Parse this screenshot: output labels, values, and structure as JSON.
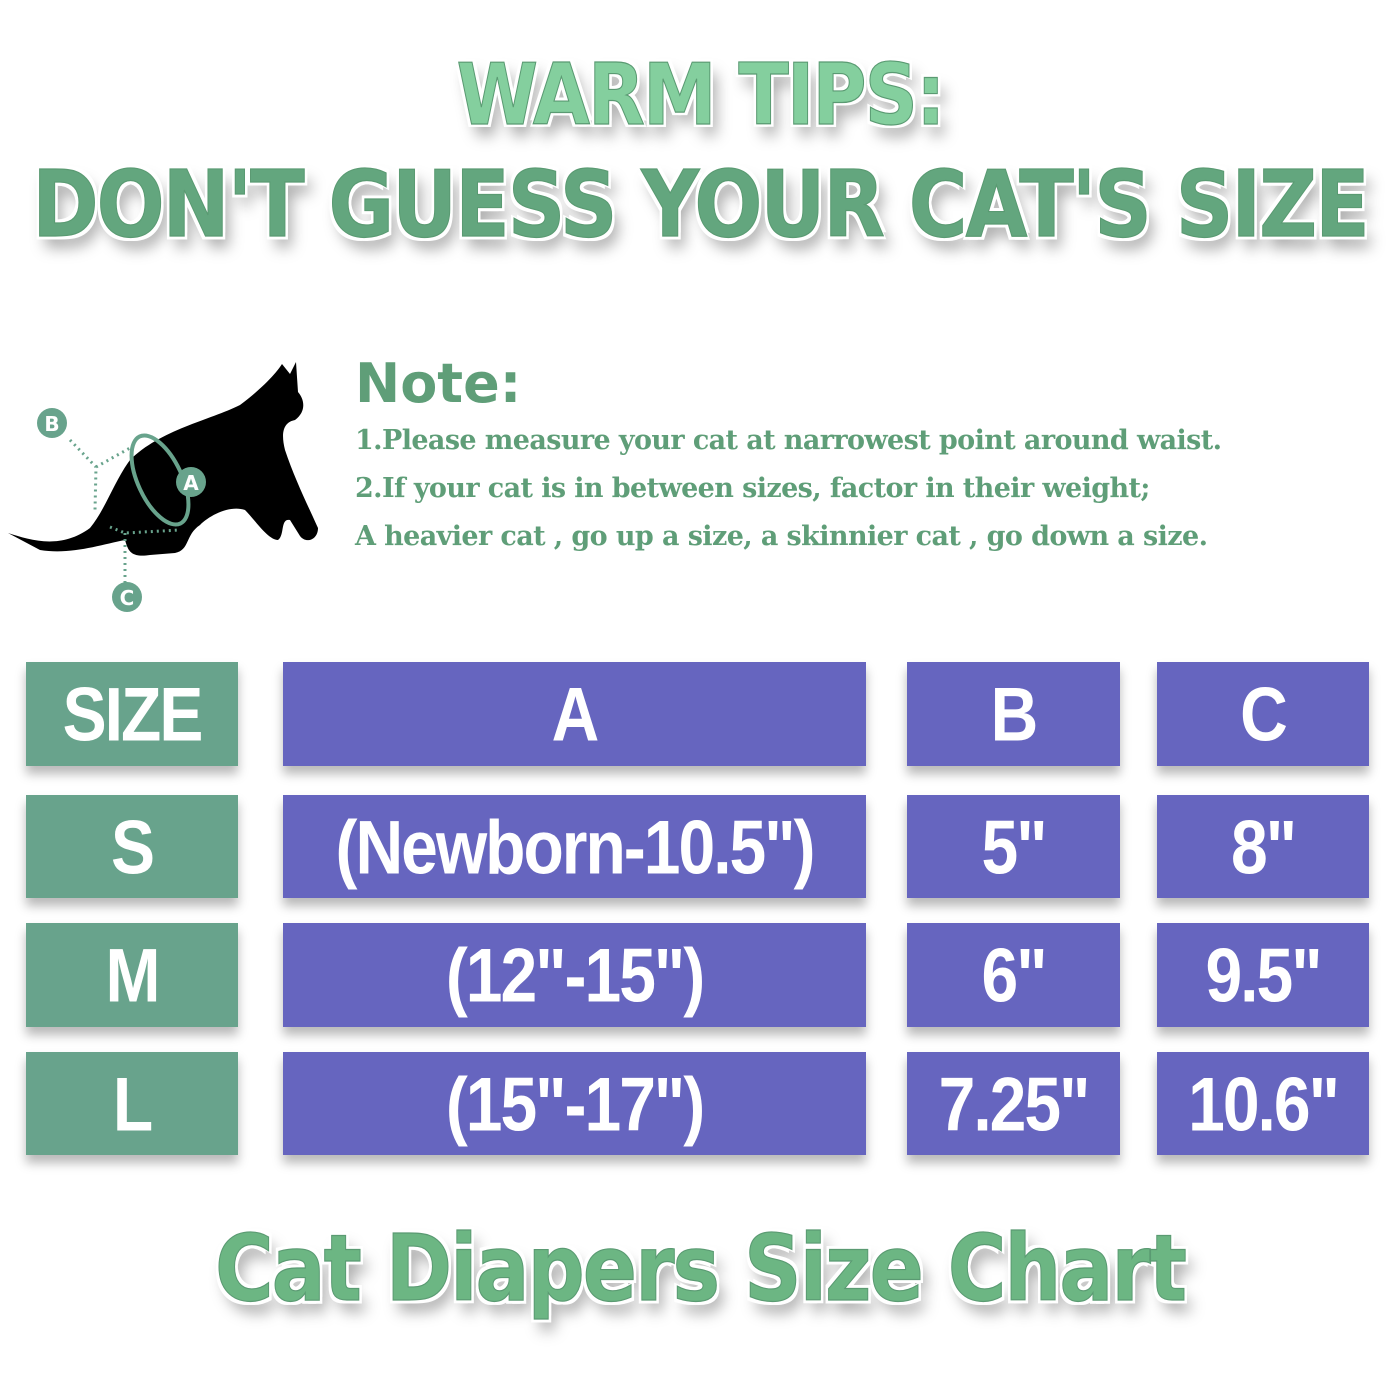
{
  "header": {
    "line1": "WARM TIPS:",
    "line2": "DON'T GUESS YOUR CAT'S SIZE"
  },
  "diagram": {
    "labels": [
      "A",
      "B",
      "C"
    ],
    "accent_color": "#68a38c"
  },
  "note": {
    "title": "Note:",
    "lines": [
      "1.Please measure your cat at narrowest point around waist.",
      "2.If your cat  is in between sizes, factor in their weight;",
      "A heavier cat , go up a size, a skinnier cat , go down a  size."
    ]
  },
  "table": {
    "headers": [
      "SIZE",
      "A",
      "B",
      "C"
    ],
    "rows": [
      [
        "S",
        "(Newborn-10.5\")",
        "5\"",
        "8\""
      ],
      [
        "M",
        "(12\"-15\")",
        "6\"",
        "9.5\""
      ],
      [
        "L",
        "(15\"-17\")",
        "7.25\"",
        "10.6\""
      ]
    ],
    "size_color": "#68a38c",
    "value_color": "#6665bf"
  },
  "footer": {
    "title": "Cat Diapers Size Chart"
  }
}
